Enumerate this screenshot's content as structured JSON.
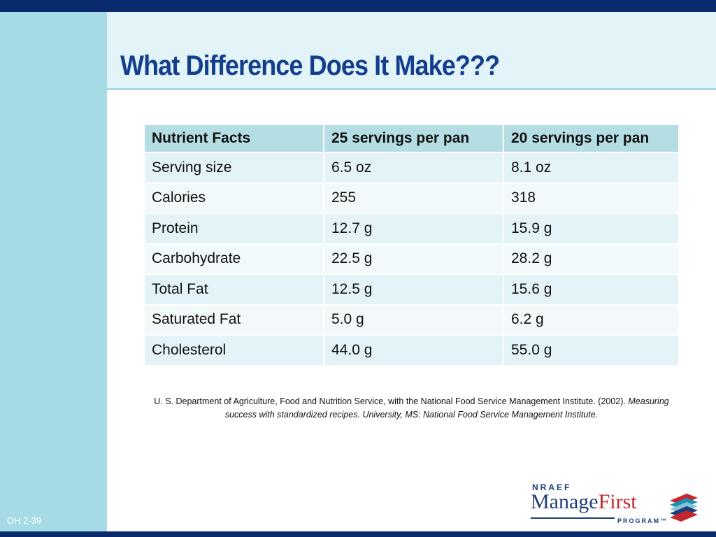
{
  "slide": {
    "title": "What Difference Does It Make???",
    "number": "OH  2-39"
  },
  "table": {
    "headers": [
      "Nutrient Facts",
      "25 servings per pan",
      "20 servings per pan"
    ],
    "rows": [
      [
        "Serving size",
        "6.5 oz",
        "8.1 oz"
      ],
      [
        "Calories",
        "255",
        "318"
      ],
      [
        "Protein",
        "12.7 g",
        "15.9 g"
      ],
      [
        "Carbohydrate",
        "22.5 g",
        "28.2 g"
      ],
      [
        "Total Fat",
        "12.5 g",
        "15.6 g"
      ],
      [
        "Saturated Fat",
        "5.0 g",
        "6.2 g"
      ],
      [
        "Cholesterol",
        "44.0 g",
        "55.0 g"
      ]
    ]
  },
  "citation": {
    "plain": "U. S. Department of Agriculture, Food and Nutrition Service, with the National Food Service Management Institute. (2002). ",
    "italic": "Measuring success with standardized recipes. University, MS: National Food Service Management Institute."
  },
  "logo": {
    "top_text": "NRAEF",
    "main_text": "Manage",
    "accent_text": "First",
    "bottom_text": "PROGRAM™"
  },
  "colors": {
    "title": "#123e8c",
    "top_bar": "#0a2a6e",
    "left_strip": "#a6dbe6",
    "header_row": "#b4dde4",
    "logo_accent": "#c4262e"
  }
}
